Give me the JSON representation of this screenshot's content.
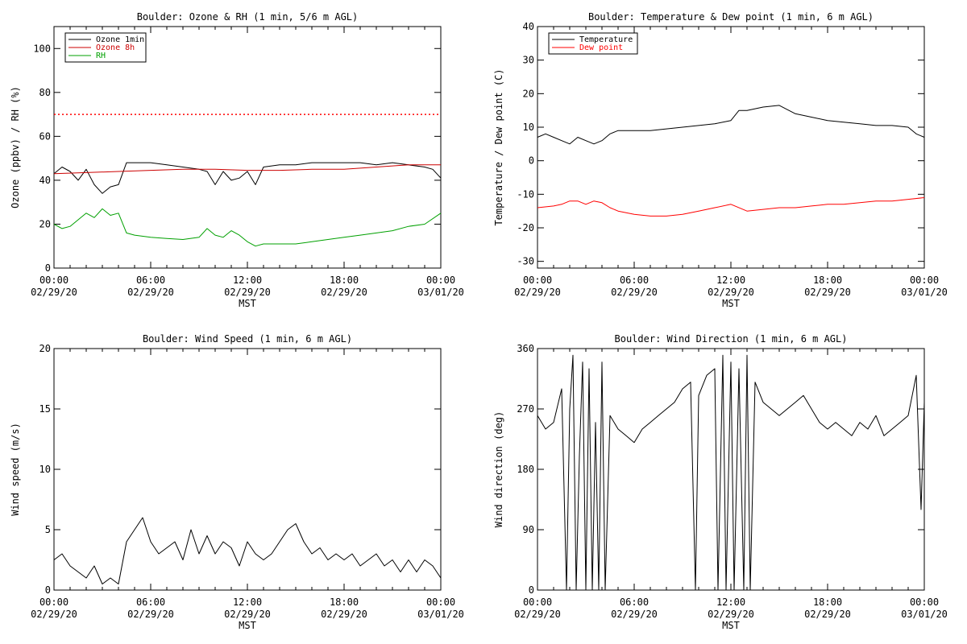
{
  "chart_data": [
    {
      "type": "line",
      "title": "Boulder: Ozone & RH (1 min, 5/6 m AGL)",
      "xlabel": "MST",
      "ylabel": "Ozone (ppbv) / RH (%)",
      "xlim": [
        0,
        24
      ],
      "ylim": [
        0,
        110
      ],
      "xticks": [
        {
          "time": "00:00",
          "date": "02/29/20"
        },
        {
          "time": "06:00",
          "date": "02/29/20"
        },
        {
          "time": "12:00",
          "date": "02/29/20"
        },
        {
          "time": "18:00",
          "date": "02/29/20"
        },
        {
          "time": "00:00",
          "date": "03/01/20"
        }
      ],
      "yticks": [
        0,
        20,
        40,
        60,
        80,
        100
      ],
      "legend": "top-left",
      "reference_line": {
        "y": 70,
        "color": "#ff0000",
        "style": "dotted"
      },
      "series": [
        {
          "name": "Ozone 1min",
          "color": "#000000",
          "x": [
            0,
            0.5,
            1,
            1.5,
            2,
            2.5,
            3,
            3.5,
            4,
            4.5,
            5,
            6,
            7,
            8,
            9,
            9.5,
            10,
            10.5,
            11,
            11.5,
            12,
            12.5,
            13,
            14,
            15,
            16,
            17,
            18,
            19,
            20,
            21,
            22,
            23,
            23.5,
            24
          ],
          "y": [
            43,
            46,
            44,
            40,
            45,
            38,
            34,
            37,
            38,
            48,
            48,
            48,
            47,
            46,
            45,
            44,
            38,
            44,
            40,
            41,
            44,
            38,
            46,
            47,
            47,
            48,
            48,
            48,
            48,
            47,
            48,
            47,
            46,
            45,
            41
          ]
        },
        {
          "name": "Ozone 8h",
          "color": "#cc0000",
          "x": [
            0,
            2,
            4,
            6,
            8,
            10,
            12,
            14,
            16,
            18,
            20,
            22,
            24
          ],
          "y": [
            43,
            43.5,
            44,
            44.5,
            45,
            45,
            44.5,
            44.5,
            45,
            45,
            46,
            47,
            47
          ]
        },
        {
          "name": "RH",
          "color": "#00a000",
          "x": [
            0,
            0.5,
            1,
            1.5,
            2,
            2.5,
            3,
            3.5,
            4,
            4.5,
            5,
            6,
            7,
            8,
            9,
            9.5,
            10,
            10.5,
            11,
            11.5,
            12,
            12.5,
            13,
            14,
            15,
            16,
            17,
            18,
            19,
            20,
            21,
            22,
            23,
            24
          ],
          "y": [
            20,
            18,
            19,
            22,
            25,
            23,
            27,
            24,
            25,
            16,
            15,
            14,
            13.5,
            13,
            14,
            18,
            15,
            14,
            17,
            15,
            12,
            10,
            11,
            11,
            11,
            12,
            13,
            14,
            15,
            16,
            17,
            19,
            20,
            25
          ]
        }
      ]
    },
    {
      "type": "line",
      "title": "Boulder: Temperature & Dew point (1 min, 6 m AGL)",
      "xlabel": "MST",
      "ylabel": "Temperature / Dew point (C)",
      "xlim": [
        0,
        24
      ],
      "ylim": [
        -32,
        40
      ],
      "xticks": [
        {
          "time": "00:00",
          "date": "02/29/20"
        },
        {
          "time": "06:00",
          "date": "02/29/20"
        },
        {
          "time": "12:00",
          "date": "02/29/20"
        },
        {
          "time": "18:00",
          "date": "02/29/20"
        },
        {
          "time": "00:00",
          "date": "03/01/20"
        }
      ],
      "yticks": [
        -30,
        -20,
        -10,
        0,
        10,
        20,
        30,
        40
      ],
      "legend": "top-left",
      "series": [
        {
          "name": "Temperature",
          "color": "#000000",
          "x": [
            0,
            0.5,
            1,
            1.5,
            2,
            2.5,
            3,
            3.5,
            4,
            4.5,
            5,
            6,
            7,
            8,
            9,
            10,
            11,
            12,
            12.5,
            13,
            14,
            15,
            16,
            17,
            18,
            19,
            20,
            21,
            22,
            23,
            23.5,
            24
          ],
          "y": [
            7,
            8,
            7,
            6,
            5,
            7,
            6,
            5,
            6,
            8,
            9,
            9,
            9,
            9.5,
            10,
            10.5,
            11,
            12,
            15,
            15,
            16,
            16.5,
            14,
            13,
            12,
            11.5,
            11,
            10.5,
            10.5,
            10,
            8,
            7
          ]
        },
        {
          "name": "Dew point",
          "color": "#ff0000",
          "x": [
            0,
            1,
            1.5,
            2,
            2.5,
            3,
            3.5,
            4,
            4.5,
            5,
            6,
            7,
            8,
            9,
            10,
            11,
            12,
            13,
            14,
            15,
            16,
            17,
            18,
            19,
            20,
            21,
            22,
            23,
            24
          ],
          "y": [
            -14,
            -13.5,
            -13,
            -12,
            -12,
            -13,
            -12,
            -12.5,
            -14,
            -15,
            -16,
            -16.5,
            -16.5,
            -16,
            -15,
            -14,
            -13,
            -15,
            -14.5,
            -14,
            -14,
            -13.5,
            -13,
            -13,
            -12.5,
            -12,
            -12,
            -11.5,
            -11
          ]
        }
      ]
    },
    {
      "type": "line",
      "title": "Boulder: Wind Speed (1 min, 6 m AGL)",
      "xlabel": "MST",
      "ylabel": "Wind speed (m/s)",
      "xlim": [
        0,
        24
      ],
      "ylim": [
        0,
        20
      ],
      "xticks": [
        {
          "time": "00:00",
          "date": "02/29/20"
        },
        {
          "time": "06:00",
          "date": "02/29/20"
        },
        {
          "time": "12:00",
          "date": "02/29/20"
        },
        {
          "time": "18:00",
          "date": "02/29/20"
        },
        {
          "time": "00:00",
          "date": "03/01/20"
        }
      ],
      "yticks": [
        0,
        5,
        10,
        15,
        20
      ],
      "series": [
        {
          "color": "#000000",
          "x": [
            0,
            0.5,
            1,
            1.5,
            2,
            2.5,
            3,
            3.5,
            4,
            4.5,
            5,
            5.5,
            6,
            6.5,
            7,
            7.5,
            8,
            8.5,
            9,
            9.5,
            10,
            10.5,
            11,
            11.5,
            12,
            12.5,
            13,
            13.5,
            14,
            14.5,
            15,
            15.5,
            16,
            16.5,
            17,
            17.5,
            18,
            18.5,
            19,
            19.5,
            20,
            20.5,
            21,
            21.5,
            22,
            22.5,
            23,
            23.5,
            24
          ],
          "y": [
            2.5,
            3,
            2,
            1.5,
            1,
            2,
            0.5,
            1,
            0.5,
            4,
            5,
            6,
            4,
            3,
            3.5,
            4,
            2.5,
            5,
            3,
            4.5,
            3,
            4,
            3.5,
            2,
            4,
            3,
            2.5,
            3,
            4,
            5,
            5.5,
            4,
            3,
            3.5,
            2.5,
            3,
            2.5,
            3,
            2,
            2.5,
            3,
            2,
            2.5,
            1.5,
            2.5,
            1.5,
            2.5,
            2,
            1
          ]
        }
      ]
    },
    {
      "type": "line",
      "title": "Boulder: Wind Direction (1 min, 6 m AGL)",
      "xlabel": "MST",
      "ylabel": "Wind direction (deg)",
      "xlim": [
        0,
        24
      ],
      "ylim": [
        0,
        360
      ],
      "xticks": [
        {
          "time": "00:00",
          "date": "02/29/20"
        },
        {
          "time": "06:00",
          "date": "02/29/20"
        },
        {
          "time": "12:00",
          "date": "02/29/20"
        },
        {
          "time": "18:00",
          "date": "02/29/20"
        },
        {
          "time": "00:00",
          "date": "03/01/20"
        }
      ],
      "yticks": [
        0,
        90,
        180,
        270,
        360
      ],
      "series": [
        {
          "color": "#000000",
          "x": [
            0,
            0.5,
            1,
            1.5,
            1.8,
            2,
            2.2,
            2.4,
            2.6,
            2.8,
            3,
            3.2,
            3.4,
            3.6,
            3.8,
            4,
            4.2,
            4.5,
            5,
            5.5,
            6,
            6.5,
            7,
            7.5,
            8,
            8.5,
            9,
            9.5,
            9.8,
            10,
            10.5,
            11,
            11.2,
            11.5,
            11.7,
            12,
            12.2,
            12.5,
            12.8,
            13,
            13.2,
            13.5,
            14,
            14.5,
            15,
            15.5,
            16,
            16.5,
            17,
            17.5,
            18,
            18.5,
            19,
            19.5,
            20,
            20.5,
            21,
            21.5,
            22,
            22.5,
            23,
            23.5,
            23.8,
            24
          ],
          "y": [
            260,
            240,
            250,
            300,
            0,
            270,
            350,
            0,
            200,
            340,
            0,
            330,
            0,
            250,
            0,
            340,
            0,
            260,
            240,
            230,
            220,
            240,
            250,
            260,
            270,
            280,
            300,
            310,
            0,
            290,
            320,
            330,
            0,
            350,
            0,
            340,
            0,
            330,
            0,
            350,
            0,
            310,
            280,
            270,
            260,
            270,
            280,
            290,
            270,
            250,
            240,
            250,
            240,
            230,
            250,
            240,
            260,
            230,
            240,
            250,
            260,
            320,
            120,
            280
          ]
        }
      ]
    }
  ]
}
